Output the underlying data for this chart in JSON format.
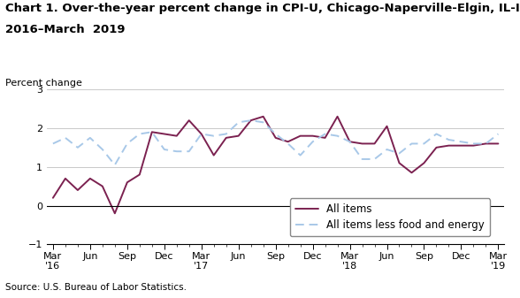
{
  "title_line1": "Chart 1. Over-the-year percent change in CPI-U, Chicago-Naperville-Elgin, IL-IN-WI, March",
  "title_line2": "2016–March  2019",
  "ylabel": "Percent change",
  "source": "Source: U.S. Bureau of Labor Statistics.",
  "ylim": [
    -1.0,
    3.0
  ],
  "yticks": [
    -1.0,
    0.0,
    1.0,
    2.0,
    3.0
  ],
  "all_items": [
    0.2,
    0.7,
    0.4,
    0.7,
    0.5,
    -0.2,
    0.6,
    0.8,
    1.9,
    1.85,
    1.8,
    2.2,
    1.85,
    1.3,
    1.75,
    1.8,
    2.2,
    2.3,
    1.75,
    1.65,
    1.8,
    1.8,
    1.75,
    2.3,
    1.65,
    1.6,
    1.6,
    2.05,
    1.1,
    0.85,
    1.1,
    1.5,
    1.55,
    1.55,
    1.55,
    1.6,
    1.6
  ],
  "core_items": [
    1.6,
    1.75,
    1.5,
    1.75,
    1.45,
    1.05,
    1.6,
    1.85,
    1.9,
    1.45,
    1.4,
    1.4,
    1.85,
    1.8,
    1.85,
    2.15,
    2.2,
    2.15,
    1.85,
    1.6,
    1.3,
    1.65,
    1.85,
    1.8,
    1.65,
    1.2,
    1.2,
    1.45,
    1.35,
    1.6,
    1.6,
    1.85,
    1.7,
    1.65,
    1.6,
    1.6,
    1.85
  ],
  "tick_labels": [
    "Mar\n'16",
    "Jun",
    "Sep",
    "Dec",
    "Mar\n'17",
    "Jun",
    "Sep",
    "Dec",
    "Mar\n'18",
    "Jun",
    "Sep",
    "Dec",
    "Mar\n'19"
  ],
  "all_items_color": "#7b2150",
  "core_items_color": "#a8c8e8",
  "title_fontsize": 9.5,
  "axis_fontsize": 8,
  "source_fontsize": 7.5,
  "legend_fontsize": 8.5
}
